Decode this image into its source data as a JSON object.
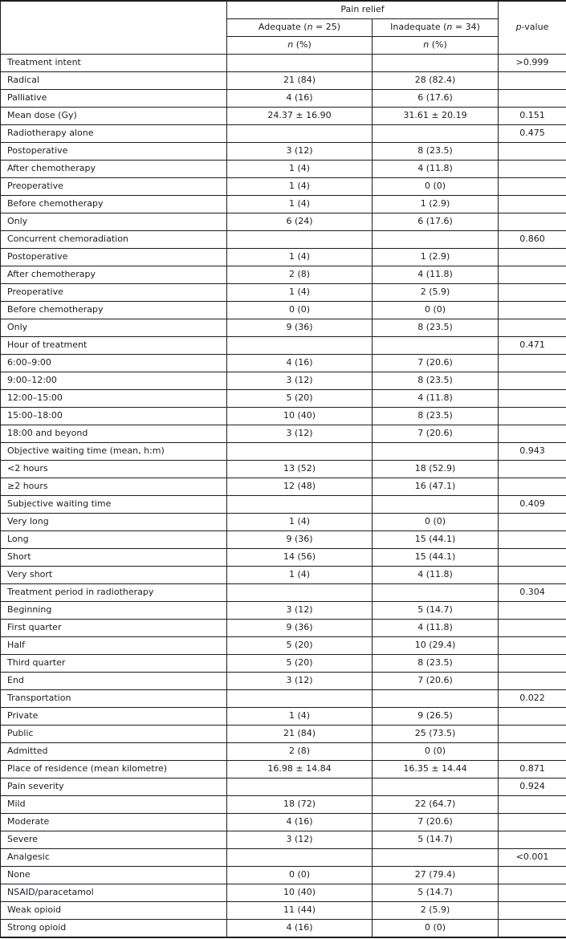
{
  "table": {
    "header": {
      "group": "Pain relief",
      "adequate": {
        "pre": "Adequate (",
        "var": "n",
        "post": " = 25)"
      },
      "inadequate": {
        "pre": "Inadequate (",
        "var": "n",
        "post": " = 34)"
      },
      "n_pct": {
        "var": "n",
        "post": " (%)"
      },
      "p_value": {
        "var": "p",
        "post": "-value"
      }
    },
    "rows": [
      {
        "label": "Treatment intent",
        "adequate": "",
        "inadequate": "",
        "p": ">0.999"
      },
      {
        "label": "Radical",
        "adequate": "21 (84)",
        "inadequate": "28 (82.4)",
        "p": ""
      },
      {
        "label": "Palliative",
        "adequate": "4 (16)",
        "inadequate": "6 (17.6)",
        "p": ""
      },
      {
        "label": "Mean dose (Gy)",
        "adequate": "24.37 ± 16.90",
        "inadequate": "31.61 ± 20.19",
        "p": "0.151"
      },
      {
        "label": "Radiotherapy alone",
        "adequate": "",
        "inadequate": "",
        "p": "0.475"
      },
      {
        "label": "Postoperative",
        "adequate": "3 (12)",
        "inadequate": "8 (23.5)",
        "p": ""
      },
      {
        "label": "After chemotherapy",
        "adequate": "1 (4)",
        "inadequate": "4 (11.8)",
        "p": ""
      },
      {
        "label": "Preoperative",
        "adequate": "1 (4)",
        "inadequate": "0 (0)",
        "p": ""
      },
      {
        "label": "Before chemotherapy",
        "adequate": "1 (4)",
        "inadequate": "1 (2.9)",
        "p": ""
      },
      {
        "label": "Only",
        "adequate": "6 (24)",
        "inadequate": "6 (17.6)",
        "p": ""
      },
      {
        "label": "Concurrent chemoradiation",
        "adequate": "",
        "inadequate": "",
        "p": "0.860"
      },
      {
        "label": "Postoperative",
        "adequate": "1 (4)",
        "inadequate": "1 (2.9)",
        "p": ""
      },
      {
        "label": "After chemotherapy",
        "adequate": "2 (8)",
        "inadequate": "4 (11.8)",
        "p": ""
      },
      {
        "label": "Preoperative",
        "adequate": "1 (4)",
        "inadequate": "2 (5.9)",
        "p": ""
      },
      {
        "label": "Before chemotherapy",
        "adequate": "0 (0)",
        "inadequate": "0 (0)",
        "p": ""
      },
      {
        "label": "Only",
        "adequate": "9 (36)",
        "inadequate": "8 (23.5)",
        "p": ""
      },
      {
        "label": "Hour of treatment",
        "adequate": "",
        "inadequate": "",
        "p": "0.471"
      },
      {
        "label": "6:00–9:00",
        "adequate": "4 (16)",
        "inadequate": "7 (20.6)",
        "p": ""
      },
      {
        "label": "9:00–12:00",
        "adequate": "3 (12)",
        "inadequate": "8 (23.5)",
        "p": ""
      },
      {
        "label": "12:00–15:00",
        "adequate": "5 (20)",
        "inadequate": "4 (11.8)",
        "p": ""
      },
      {
        "label": "15:00–18:00",
        "adequate": "10 (40)",
        "inadequate": "8 (23.5)",
        "p": ""
      },
      {
        "label": "18:00 and beyond",
        "adequate": "3 (12)",
        "inadequate": "7 (20.6)",
        "p": ""
      },
      {
        "label": "Objective waiting time (mean, h:m)",
        "adequate": "",
        "inadequate": "",
        "p": "0.943"
      },
      {
        "label": "<2 hours",
        "adequate": "13 (52)",
        "inadequate": "18 (52.9)",
        "p": ""
      },
      {
        "label": "≥2 hours",
        "adequate": "12 (48)",
        "inadequate": "16 (47.1)",
        "p": ""
      },
      {
        "label": "Subjective waiting time",
        "adequate": "",
        "inadequate": "",
        "p": "0.409"
      },
      {
        "label": "Very long",
        "adequate": "1 (4)",
        "inadequate": "0 (0)",
        "p": ""
      },
      {
        "label": "Long",
        "adequate": "9 (36)",
        "inadequate": "15 (44.1)",
        "p": ""
      },
      {
        "label": "Short",
        "adequate": "14 (56)",
        "inadequate": "15 (44.1)",
        "p": ""
      },
      {
        "label": "Very short",
        "adequate": "1 (4)",
        "inadequate": "4 (11.8)",
        "p": ""
      },
      {
        "label": "Treatment period in radiotherapy",
        "adequate": "",
        "inadequate": "",
        "p": "0.304"
      },
      {
        "label": "Beginning",
        "adequate": "3 (12)",
        "inadequate": "5 (14.7)",
        "p": ""
      },
      {
        "label": "First quarter",
        "adequate": "9 (36)",
        "inadequate": "4 (11.8)",
        "p": ""
      },
      {
        "label": "Half",
        "adequate": "5 (20)",
        "inadequate": "10 (29.4)",
        "p": ""
      },
      {
        "label": "Third quarter",
        "adequate": "5 (20)",
        "inadequate": "8 (23.5)",
        "p": ""
      },
      {
        "label": "End",
        "adequate": "3 (12)",
        "inadequate": "7 (20.6)",
        "p": ""
      },
      {
        "label": "Transportation",
        "adequate": "",
        "inadequate": "",
        "p": "0.022"
      },
      {
        "label": "Private",
        "adequate": "1 (4)",
        "inadequate": "9 (26.5)",
        "p": ""
      },
      {
        "label": "Public",
        "adequate": "21 (84)",
        "inadequate": "25 (73.5)",
        "p": ""
      },
      {
        "label": "Admitted",
        "adequate": "2 (8)",
        "inadequate": "0 (0)",
        "p": ""
      },
      {
        "label": "Place of residence (mean kilometre)",
        "adequate": "16.98 ± 14.84",
        "inadequate": "16.35 ± 14.44",
        "p": "0.871"
      },
      {
        "label": "Pain severity",
        "adequate": "",
        "inadequate": "",
        "p": "0.924"
      },
      {
        "label": "Mild",
        "adequate": "18 (72)",
        "inadequate": "22 (64.7)",
        "p": ""
      },
      {
        "label": "Moderate",
        "adequate": "4 (16)",
        "inadequate": "7 (20.6)",
        "p": ""
      },
      {
        "label": "Severe",
        "adequate": "3 (12)",
        "inadequate": "5 (14.7)",
        "p": ""
      },
      {
        "label": "Analgesic",
        "adequate": "",
        "inadequate": "",
        "p": "<0.001"
      },
      {
        "label": "None",
        "adequate": "0 (0)",
        "inadequate": "27 (79.4)",
        "p": ""
      },
      {
        "label": "NSAID/paracetamol",
        "adequate": "10 (40)",
        "inadequate": "5 (14.7)",
        "p": ""
      },
      {
        "label": "Weak opioid",
        "adequate": "11 (44)",
        "inadequate": "2 (5.9)",
        "p": ""
      },
      {
        "label": "Strong opioid",
        "adequate": "4 (16)",
        "inadequate": "0 (0)",
        "p": ""
      }
    ]
  }
}
